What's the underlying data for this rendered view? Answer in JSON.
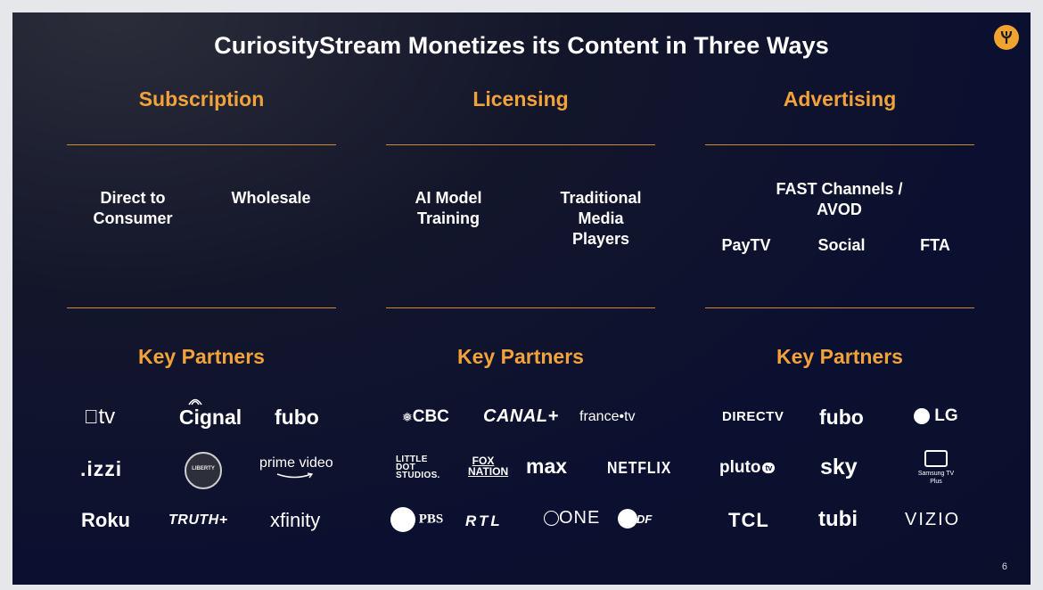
{
  "title": "CuriosityStream Monetizes its Content in Three Ways",
  "columns": [
    {
      "heading": "Subscription",
      "items": [
        "Direct to Consumer",
        "Wholesale"
      ],
      "partners_heading": "Key Partners",
      "partners": [
        "tv",
        "Cignal",
        "fubo",
        ".izzi",
        "LIBERTY",
        "prime video",
        "Roku",
        "TRUTH+",
        "xfinity"
      ]
    },
    {
      "heading": "Licensing",
      "items": [
        "AI Model Training",
        "Traditional Media Players"
      ],
      "partners_heading": "Key Partners",
      "partners": [
        "CBC",
        "CANAL+",
        "france•tv",
        "LITTLE DOT STUDIOS.",
        "FOX NATION",
        "max",
        "NETFLIX",
        "PBS",
        "RTL",
        "ONE",
        "ZDF"
      ]
    },
    {
      "heading": "Advertising",
      "items": [
        "FAST Channels / AVOD",
        "PayTV",
        "Social",
        "FTA"
      ],
      "partners_heading": "Key Partners",
      "partners": [
        "DIRECTV",
        "fubo",
        "LG",
        "pluto",
        "tv",
        "sky",
        "Samsung TV Plus",
        "TCL",
        "tubi",
        "VIZIO"
      ]
    }
  ],
  "page_number": "6",
  "colors": {
    "accent": "#f2a23a",
    "rule": "#d18a31",
    "background": "#0b1030"
  }
}
